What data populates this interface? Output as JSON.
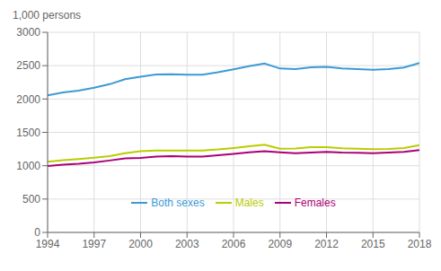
{
  "chart_data": {
    "type": "line",
    "ylabel": "1,000 persons",
    "x": [
      1994,
      1995,
      1996,
      1997,
      1998,
      1999,
      2000,
      2001,
      2002,
      2003,
      2004,
      2005,
      2006,
      2007,
      2008,
      2009,
      2010,
      2011,
      2012,
      2013,
      2014,
      2015,
      2016,
      2017,
      2018
    ],
    "series": [
      {
        "name": "Both sexes",
        "color": "#3C9AD4",
        "values": [
          2054,
          2099,
          2127,
          2170,
          2222,
          2296,
          2335,
          2367,
          2372,
          2365,
          2365,
          2401,
          2444,
          2492,
          2531,
          2457,
          2447,
          2474,
          2483,
          2457,
          2447,
          2437,
          2448,
          2473,
          2540
        ]
      },
      {
        "name": "Males",
        "color": "#BBCC00",
        "values": [
          1059,
          1083,
          1099,
          1120,
          1144,
          1186,
          1218,
          1229,
          1229,
          1227,
          1229,
          1243,
          1266,
          1290,
          1315,
          1255,
          1259,
          1278,
          1277,
          1261,
          1254,
          1249,
          1252,
          1266,
          1307
        ]
      },
      {
        "name": "Females",
        "color": "#AA0077",
        "values": [
          995,
          1016,
          1028,
          1050,
          1078,
          1110,
          1117,
          1138,
          1143,
          1138,
          1136,
          1158,
          1178,
          1202,
          1216,
          1202,
          1188,
          1196,
          1206,
          1196,
          1193,
          1188,
          1196,
          1207,
          1233
        ]
      }
    ],
    "xlim": [
      1994,
      2018
    ],
    "xticks": [
      1994,
      1997,
      2000,
      2003,
      2006,
      2009,
      2012,
      2015,
      2018
    ],
    "ylim": [
      0,
      3000
    ],
    "yticks": [
      0,
      500,
      1000,
      1500,
      2000,
      2500,
      3000
    ],
    "grid": true,
    "legend": "lower center"
  }
}
